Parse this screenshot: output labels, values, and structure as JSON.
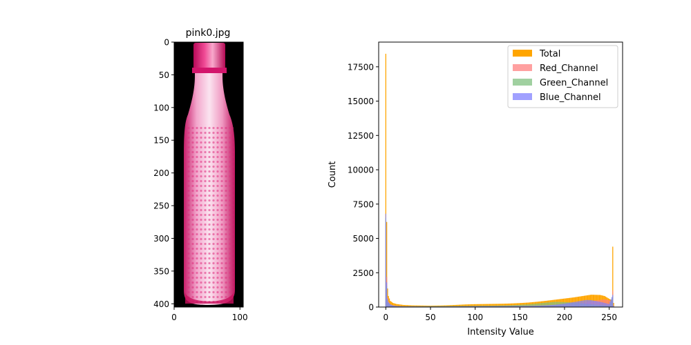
{
  "colors": {
    "total": "#ffa500",
    "red": "#ff8080",
    "green": "#80c080",
    "blue": "#8080ff",
    "image_background": "#000000",
    "bottle_pink": "#e0307f"
  },
  "chart_data": [
    {
      "type": "image",
      "title": "pink0.jpg",
      "xlim": [
        0,
        105
      ],
      "ylim": [
        0,
        405
      ],
      "x_ticks": [
        0,
        100
      ],
      "y_ticks": [
        0,
        50,
        100,
        150,
        200,
        250,
        300,
        350,
        400
      ],
      "y_inverted": true,
      "image_description": "pink-bottle-photo"
    },
    {
      "type": "histogram",
      "title": "",
      "xlabel": "Intensity Value",
      "ylabel": "Count",
      "xlim": [
        -8,
        265
      ],
      "ylim": [
        0,
        19300
      ],
      "x_ticks": [
        0,
        50,
        100,
        150,
        200,
        250
      ],
      "y_ticks": [
        0,
        2500,
        5000,
        7500,
        10000,
        12500,
        15000,
        17500
      ],
      "legend_position": "top-right",
      "bin_width": 1,
      "series": [
        {
          "name": "Total",
          "color_key": "total",
          "points": [
            [
              0,
              18450
            ],
            [
              1,
              6200
            ],
            [
              2,
              1350
            ],
            [
              3,
              800
            ],
            [
              5,
              450
            ],
            [
              8,
              300
            ],
            [
              12,
              220
            ],
            [
              20,
              150
            ],
            [
              30,
              120
            ],
            [
              40,
              110
            ],
            [
              50,
              100
            ],
            [
              60,
              110
            ],
            [
              70,
              130
            ],
            [
              80,
              160
            ],
            [
              90,
              190
            ],
            [
              100,
              210
            ],
            [
              110,
              220
            ],
            [
              120,
              230
            ],
            [
              130,
              240
            ],
            [
              140,
              260
            ],
            [
              150,
              290
            ],
            [
              160,
              330
            ],
            [
              170,
              390
            ],
            [
              180,
              460
            ],
            [
              190,
              540
            ],
            [
              200,
              620
            ],
            [
              210,
              700
            ],
            [
              220,
              800
            ],
            [
              230,
              900
            ],
            [
              240,
              880
            ],
            [
              245,
              800
            ],
            [
              250,
              600
            ],
            [
              253,
              500
            ],
            [
              254,
              4400
            ],
            [
              255,
              300
            ]
          ]
        },
        {
          "name": "Red_Channel",
          "color_key": "red",
          "points": [
            [
              0,
              6000
            ],
            [
              1,
              2200
            ],
            [
              2,
              700
            ],
            [
              3,
              400
            ],
            [
              5,
              200
            ],
            [
              8,
              120
            ],
            [
              12,
              80
            ],
            [
              20,
              50
            ],
            [
              40,
              40
            ],
            [
              60,
              40
            ],
            [
              80,
              50
            ],
            [
              100,
              60
            ],
            [
              120,
              70
            ],
            [
              140,
              80
            ],
            [
              160,
              100
            ],
            [
              180,
              140
            ],
            [
              200,
              180
            ],
            [
              210,
              220
            ],
            [
              220,
              300
            ],
            [
              230,
              420
            ],
            [
              240,
              520
            ],
            [
              245,
              560
            ],
            [
              250,
              500
            ],
            [
              253,
              380
            ],
            [
              254,
              1200
            ],
            [
              255,
              100
            ]
          ]
        },
        {
          "name": "Green_Channel",
          "color_key": "green",
          "points": [
            [
              0,
              6500
            ],
            [
              1,
              1500
            ],
            [
              2,
              500
            ],
            [
              3,
              300
            ],
            [
              5,
              180
            ],
            [
              8,
              100
            ],
            [
              12,
              70
            ],
            [
              20,
              60
            ],
            [
              40,
              60
            ],
            [
              60,
              70
            ],
            [
              80,
              80
            ],
            [
              100,
              90
            ],
            [
              120,
              100
            ],
            [
              140,
              130
            ],
            [
              160,
              200
            ],
            [
              170,
              260
            ],
            [
              180,
              330
            ],
            [
              190,
              380
            ],
            [
              200,
              360
            ],
            [
              210,
              320
            ],
            [
              220,
              260
            ],
            [
              230,
              200
            ],
            [
              240,
              150
            ],
            [
              250,
              110
            ],
            [
              254,
              800
            ],
            [
              255,
              60
            ]
          ]
        },
        {
          "name": "Blue_Channel",
          "color_key": "blue",
          "points": [
            [
              0,
              6800
            ],
            [
              1,
              1800
            ],
            [
              2,
              600
            ],
            [
              3,
              350
            ],
            [
              5,
              200
            ],
            [
              8,
              110
            ],
            [
              12,
              70
            ],
            [
              20,
              50
            ],
            [
              40,
              40
            ],
            [
              60,
              40
            ],
            [
              80,
              50
            ],
            [
              100,
              60
            ],
            [
              120,
              60
            ],
            [
              140,
              70
            ],
            [
              160,
              80
            ],
            [
              180,
              120
            ],
            [
              190,
              170
            ],
            [
              200,
              250
            ],
            [
              210,
              360
            ],
            [
              220,
              470
            ],
            [
              225,
              520
            ],
            [
              230,
              500
            ],
            [
              240,
              380
            ],
            [
              250,
              220
            ],
            [
              254,
              900
            ],
            [
              255,
              60
            ]
          ]
        }
      ]
    }
  ]
}
